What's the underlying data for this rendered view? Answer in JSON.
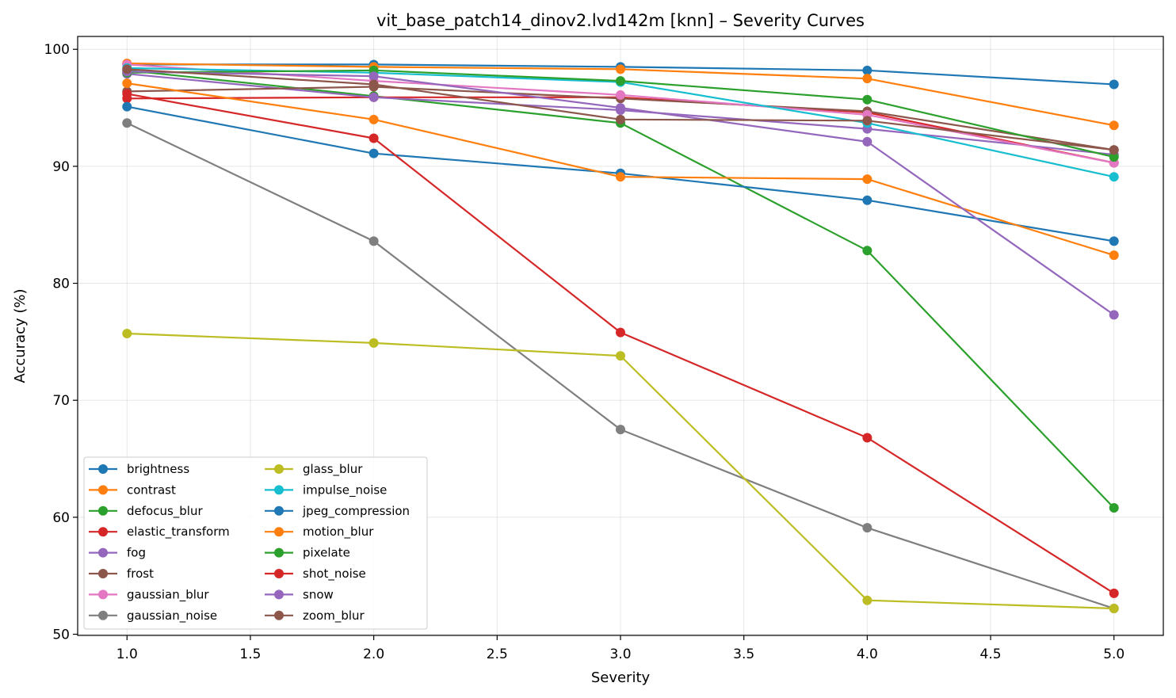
{
  "chart_data": {
    "type": "line",
    "title": "vit_base_patch14_dinov2.lvd142m [knn] – Severity Curves",
    "xlabel": "Severity",
    "ylabel": "Accuracy (%)",
    "xlim": [
      0.8,
      5.2
    ],
    "ylim": [
      49.9,
      101.1
    ],
    "xticks": [
      1.0,
      1.5,
      2.0,
      2.5,
      3.0,
      3.5,
      4.0,
      4.5,
      5.0
    ],
    "xtick_labels": [
      "1.0",
      "1.5",
      "2.0",
      "2.5",
      "3.0",
      "3.5",
      "4.0",
      "4.5",
      "5.0"
    ],
    "yticks": [
      50,
      60,
      70,
      80,
      90,
      100
    ],
    "ytick_labels": [
      "50",
      "60",
      "70",
      "80",
      "90",
      "100"
    ],
    "grid": true,
    "legend_position": "lower-left",
    "legend_columns": 2,
    "x": [
      1,
      2,
      3,
      4,
      5
    ],
    "series": [
      {
        "name": "brightness",
        "color": "#1f77b4",
        "values": [
          98.7,
          98.7,
          98.5,
          98.2,
          97.0
        ]
      },
      {
        "name": "contrast",
        "color": "#ff7f0e",
        "values": [
          98.8,
          98.5,
          98.3,
          97.5,
          93.5
        ]
      },
      {
        "name": "defocus_blur",
        "color": "#2ca02c",
        "values": [
          98.2,
          96.0,
          93.7,
          82.8,
          60.8
        ]
      },
      {
        "name": "elastic_transform",
        "color": "#d62728",
        "values": [
          95.8,
          95.9,
          95.9,
          94.6,
          90.3
        ]
      },
      {
        "name": "fog",
        "color": "#9467bd",
        "values": [
          97.9,
          95.9,
          94.8,
          93.2,
          91.0
        ]
      },
      {
        "name": "frost",
        "color": "#8c564b",
        "values": [
          96.4,
          96.8,
          95.8,
          94.7,
          91.4
        ]
      },
      {
        "name": "gaussian_blur",
        "color": "#e377c2",
        "values": [
          98.7,
          97.3,
          96.1,
          94.4,
          90.3
        ]
      },
      {
        "name": "gaussian_noise",
        "color": "#7f7f7f",
        "values": [
          93.7,
          83.6,
          67.5,
          59.1,
          52.2
        ]
      },
      {
        "name": "glass_blur",
        "color": "#bcbd22",
        "values": [
          75.7,
          74.9,
          73.8,
          52.9,
          52.2
        ]
      },
      {
        "name": "impulse_noise",
        "color": "#17becf",
        "values": [
          98.4,
          98.0,
          97.2,
          93.7,
          89.1
        ]
      },
      {
        "name": "jpeg_compression",
        "color": "#1f77b4",
        "values": [
          95.1,
          91.1,
          89.4,
          87.1,
          83.6
        ]
      },
      {
        "name": "motion_blur",
        "color": "#ff7f0e",
        "values": [
          97.1,
          94.0,
          89.1,
          88.9,
          82.4
        ]
      },
      {
        "name": "pixelate",
        "color": "#2ca02c",
        "values": [
          98.0,
          98.2,
          97.3,
          95.7,
          90.8
        ]
      },
      {
        "name": "shot_noise",
        "color": "#d62728",
        "values": [
          96.2,
          92.4,
          75.8,
          66.8,
          53.5
        ]
      },
      {
        "name": "snow",
        "color": "#9467bd",
        "values": [
          98.1,
          97.7,
          95.0,
          92.1,
          77.3
        ]
      },
      {
        "name": "zoom_blur",
        "color": "#8c564b",
        "values": [
          98.3,
          97.0,
          94.0,
          93.9,
          91.4
        ]
      }
    ]
  }
}
